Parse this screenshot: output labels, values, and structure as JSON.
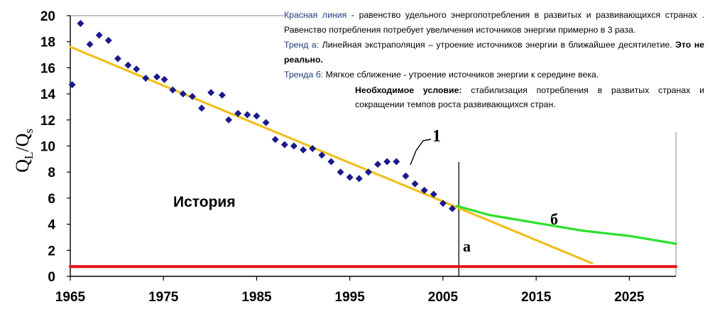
{
  "chart_data": {
    "type": "scatter",
    "ylabel": "QL/Qs",
    "ylabel_main": "Q",
    "ylabel_sub1": "L",
    "ylabel_slash": "/Q",
    "ylabel_sub2": "s",
    "xlim": [
      1965,
      2030
    ],
    "ylim": [
      0,
      20
    ],
    "x_ticks": [
      "1965",
      "1975",
      "1985",
      "1995",
      "2005",
      "2015",
      "2025"
    ],
    "y_ticks": [
      "0",
      "2",
      "4",
      "6",
      "8",
      "10",
      "12",
      "14",
      "16",
      "18",
      "20"
    ],
    "series": [
      {
        "kind": "points",
        "color": "#1a1a8c",
        "points": [
          [
            1965.2,
            14.7
          ],
          [
            1966.1,
            19.4
          ],
          [
            1967.1,
            17.8
          ],
          [
            1968.1,
            18.5
          ],
          [
            1969.1,
            18.1
          ],
          [
            1970.1,
            16.7
          ],
          [
            1971.2,
            16.2
          ],
          [
            1972.1,
            15.9
          ],
          [
            1973.1,
            15.2
          ],
          [
            1974.3,
            15.3
          ],
          [
            1975.1,
            15.1
          ],
          [
            1976.0,
            14.3
          ],
          [
            1977.1,
            14.0
          ],
          [
            1978.1,
            13.8
          ],
          [
            1979.1,
            12.9
          ],
          [
            1980.1,
            14.1
          ],
          [
            1981.3,
            13.9
          ],
          [
            1982.0,
            12.0
          ],
          [
            1983.0,
            12.5
          ],
          [
            1984.0,
            12.4
          ],
          [
            1985.0,
            12.3
          ],
          [
            1986.0,
            11.8
          ],
          [
            1987.0,
            10.5
          ],
          [
            1988.0,
            10.1
          ],
          [
            1989.0,
            10.0
          ],
          [
            1990.0,
            9.7
          ],
          [
            1991.0,
            9.8
          ],
          [
            1992.0,
            9.3
          ],
          [
            1993.0,
            8.8
          ],
          [
            1994.0,
            8.0
          ],
          [
            1995.0,
            7.6
          ],
          [
            1996.0,
            7.5
          ],
          [
            1997.0,
            8.0
          ],
          [
            1998.0,
            8.6
          ],
          [
            1999.0,
            8.8
          ],
          [
            2000.0,
            8.8
          ],
          [
            2001.0,
            7.7
          ],
          [
            2002.0,
            7.1
          ],
          [
            2003.0,
            6.6
          ],
          [
            2004.0,
            6.3
          ],
          [
            2005.0,
            5.6
          ],
          [
            2006.0,
            5.2
          ]
        ]
      },
      {
        "kind": "line",
        "name": "trend-a",
        "color": "#f0c020",
        "x": [
          1965,
          2021
        ],
        "y": [
          17.6,
          1.0
        ]
      },
      {
        "kind": "line",
        "name": "trend-b",
        "color": "#2ce12c",
        "x": [
          2006.5,
          2010,
          2015,
          2020,
          2025,
          2030
        ],
        "y": [
          5.4,
          4.7,
          4.1,
          3.5,
          3.1,
          2.5
        ]
      },
      {
        "kind": "line",
        "name": "equality",
        "color": "#e81010",
        "x": [
          1965,
          2030
        ],
        "y": [
          0.75,
          0.75
        ]
      }
    ],
    "vline_x": 2006.7,
    "annotations": {
      "history": "История",
      "line_label": "1",
      "label_a": "а",
      "label_b": "б"
    }
  },
  "note": {
    "p1_label": "Красная линия",
    "p1_text": " - равенство удельного энергопотребления в развитых и развивающихся странах . Равенство  потребления  потребует увеличения  источников энергии примерно в 3 раза.",
    "p2_label": "Тренд а:",
    "p2_text": " Линейная экстраполяция  – утроение источников энергии в ближайшее десятилетие. ",
    "p2_bold": "Это не реально.",
    "p3_label": "Тренда б:",
    "p3_text": " Мягкое сближение - утроение  источников энергии к середине века.",
    "p3_bold": "Необходимое условие:",
    "p3_text2": "  стабилизация потребления в развитых странах и сокращении темпов роста  развивающихся стран."
  }
}
